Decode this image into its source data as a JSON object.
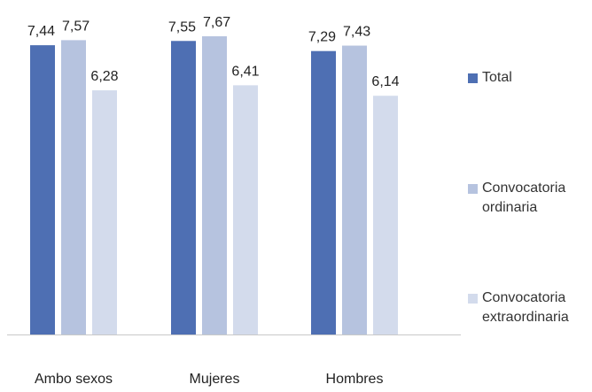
{
  "chart_data": {
    "type": "bar",
    "title": "",
    "xlabel": "",
    "ylabel": "",
    "categories": [
      "Ambo sexos",
      "Mujeres",
      "Hombres"
    ],
    "series": [
      {
        "name": "Total",
        "values": [
          7.44,
          7.55,
          7.29
        ],
        "labels": [
          "7,44",
          "7,55",
          "7,29"
        ],
        "color": "#4e6fb3"
      },
      {
        "name": "Convocatoria ordinaria",
        "values": [
          7.57,
          7.67,
          7.43
        ],
        "labels": [
          "7,57",
          "7,67",
          "7,43"
        ],
        "color": "#b6c3df"
      },
      {
        "name": "Convocatoria extraordinaria",
        "values": [
          6.28,
          6.41,
          6.14
        ],
        "labels": [
          "6,28",
          "6,41",
          "6,14"
        ],
        "color": "#d3dbec"
      }
    ],
    "ylim": [
      0,
      7.67
    ],
    "grid": false,
    "legend": "right"
  },
  "legend": {
    "items": [
      {
        "label": "Total"
      },
      {
        "label": "Convocatoria\nordinaria"
      },
      {
        "label": "Convocatoria\nextraordinaria"
      }
    ]
  }
}
